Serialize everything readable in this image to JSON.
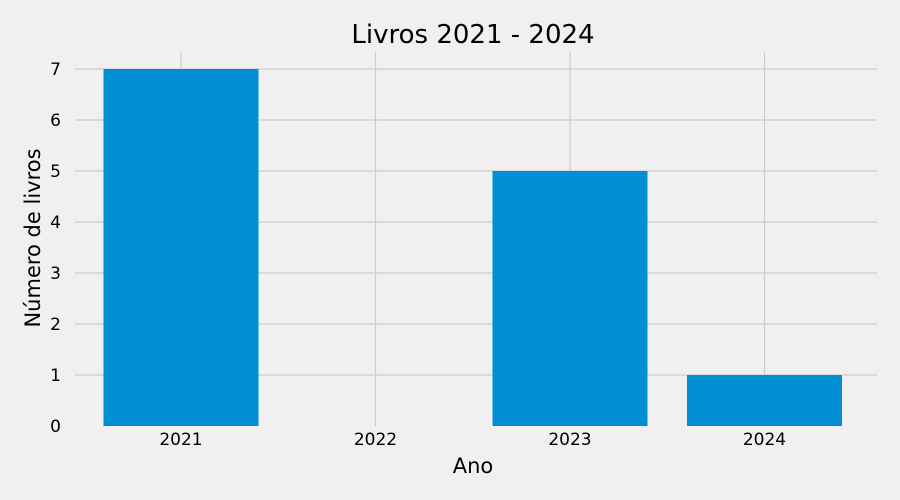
{
  "chart_data": {
    "type": "bar",
    "title": "Livros  2021 - 2024",
    "xlabel": "Ano",
    "ylabel": "Número de livros",
    "categories": [
      "2021",
      "2022",
      "2023",
      "2024"
    ],
    "values": [
      7,
      0,
      5,
      1
    ],
    "ylim": [
      0,
      7.35
    ],
    "yticks": [
      "0",
      "1",
      "2",
      "3",
      "4",
      "5",
      "6",
      "7"
    ],
    "grid": true,
    "colors": {
      "bar": "#008fd5",
      "background": "#f0f0f0",
      "grid": "#cbcbcb"
    }
  }
}
